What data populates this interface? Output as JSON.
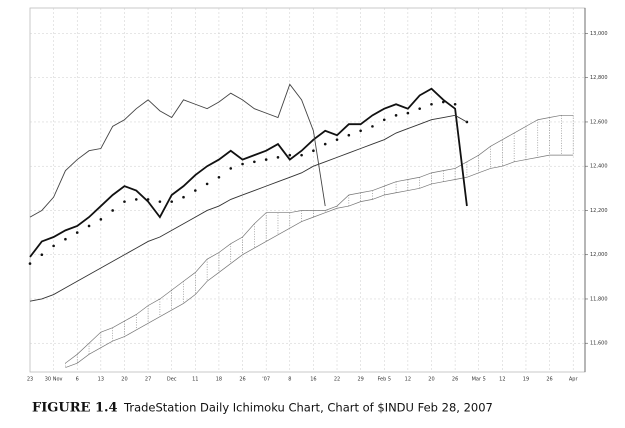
{
  "chart_data": {
    "type": "line",
    "categories": [
      "23",
      null,
      "30 Nov",
      null,
      "6",
      null,
      "13",
      null,
      "20",
      null,
      "27",
      null,
      "Dec",
      null,
      "11",
      null,
      "18",
      null,
      "26",
      null,
      "'07",
      null,
      "8",
      null,
      "16",
      null,
      "22",
      null,
      "29",
      null,
      "Feb 5",
      null,
      "12",
      null,
      "20",
      null,
      "26",
      null,
      "Mar 5",
      null,
      "12",
      null,
      "19",
      null,
      "26",
      null,
      "Apr",
      null
    ],
    "ylim": [
      11470,
      13115
    ],
    "yticks": [
      {
        "value": 11600,
        "label": "11,600"
      },
      {
        "value": 11800,
        "label": "11,800"
      },
      {
        "value": 12000,
        "label": "12,000"
      },
      {
        "value": 12200,
        "label": "12,200"
      },
      {
        "value": 12400,
        "label": "12,400"
      },
      {
        "value": 12600,
        "label": "12,600"
      },
      {
        "value": 12800,
        "label": "12,800"
      },
      {
        "value": 13000,
        "label": "13,000"
      }
    ],
    "grid": true,
    "series": [
      {
        "type": "line",
        "color": "#111111",
        "width": 1.8,
        "values": [
          11990,
          12060,
          12080,
          12110,
          12130,
          12170,
          12220,
          12270,
          12310,
          12290,
          12240,
          12170,
          12270,
          12310,
          12360,
          12400,
          12430,
          12470,
          12430,
          12450,
          12470,
          12500,
          12430,
          12470,
          12520,
          12560,
          12540,
          12590,
          12590,
          12630,
          12660,
          12680,
          12660,
          12720,
          12750,
          12700,
          12660,
          12220,
          null,
          null,
          null,
          null,
          null,
          null,
          null,
          null,
          null,
          null
        ]
      },
      {
        "type": "scatter",
        "color": "#111111",
        "values": [
          11960,
          12000,
          12040,
          12070,
          12100,
          12130,
          12160,
          12200,
          12240,
          12250,
          12250,
          12240,
          12240,
          12260,
          12290,
          12320,
          12350,
          12390,
          12410,
          12420,
          12430,
          12440,
          12450,
          12450,
          12470,
          12500,
          12520,
          12540,
          12560,
          12580,
          12610,
          12630,
          12640,
          12660,
          12680,
          12690,
          12680,
          12600,
          null,
          null,
          null,
          null,
          null,
          null,
          null,
          null,
          null,
          null
        ]
      },
      {
        "type": "line",
        "color": "#333333",
        "width": 0.9,
        "values": [
          11790,
          11800,
          11820,
          11850,
          11880,
          11910,
          11940,
          11970,
          12000,
          12030,
          12060,
          12080,
          12110,
          12140,
          12170,
          12200,
          12220,
          12250,
          12270,
          12290,
          12310,
          12330,
          12350,
          12370,
          12400,
          12420,
          12440,
          12460,
          12480,
          12500,
          12520,
          12550,
          12570,
          12590,
          12610,
          12620,
          12630,
          12600,
          null,
          null,
          null,
          null,
          null,
          null,
          null,
          null,
          null,
          null
        ]
      },
      {
        "type": "line",
        "color": "#444444",
        "width": 0.9,
        "values": [
          12170,
          12200,
          12260,
          12380,
          12430,
          12470,
          12480,
          12580,
          12610,
          12660,
          12700,
          12650,
          12620,
          12700,
          12680,
          12660,
          12690,
          12730,
          12700,
          12660,
          12640,
          12620,
          12770,
          12700,
          12560,
          12220,
          null,
          null,
          null,
          null,
          null,
          null,
          null,
          null,
          null,
          null,
          null,
          null,
          null,
          null,
          null,
          null,
          null,
          null,
          null,
          null,
          null,
          null
        ]
      }
    ],
    "cloud": {
      "color": "#777777",
      "upper": [
        null,
        null,
        null,
        11510,
        11550,
        11600,
        11650,
        11670,
        11700,
        11730,
        11770,
        11800,
        11840,
        11880,
        11920,
        11980,
        12010,
        12050,
        12080,
        12140,
        12190,
        12190,
        12190,
        12200,
        12200,
        12200,
        12220,
        12270,
        12280,
        12290,
        12310,
        12330,
        12340,
        12350,
        12370,
        12380,
        12390,
        12420,
        12450,
        12490,
        12520,
        12550,
        12580,
        12610,
        12620,
        12630,
        12630,
        null
      ],
      "lower": [
        null,
        null,
        null,
        11490,
        11510,
        11550,
        11580,
        11610,
        11630,
        11660,
        11690,
        11720,
        11750,
        11780,
        11820,
        11880,
        11920,
        11960,
        12000,
        12030,
        12060,
        12090,
        12120,
        12150,
        12170,
        12190,
        12210,
        12220,
        12240,
        12250,
        12270,
        12280,
        12290,
        12300,
        12320,
        12330,
        12340,
        12350,
        12370,
        12390,
        12400,
        12420,
        12430,
        12440,
        12450,
        12450,
        12450,
        null
      ]
    }
  },
  "figure": {
    "label": "FIGURE 1.4",
    "caption": "TradeStation Daily Ichimoku Chart, Chart of $INDU Feb 28, 2007"
  }
}
